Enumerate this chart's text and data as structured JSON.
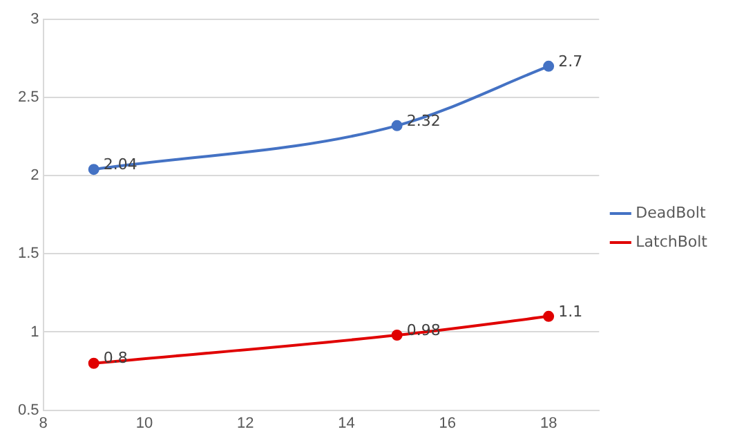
{
  "chart_data": {
    "type": "line",
    "x": [
      9,
      15,
      18
    ],
    "series": [
      {
        "name": "DeadBolt",
        "color": "#4472c4",
        "values": [
          2.04,
          2.32,
          2.7
        ]
      },
      {
        "name": "LatchBolt",
        "color": "#e00000",
        "values": [
          0.8,
          0.98,
          1.1
        ]
      }
    ],
    "xlim": [
      8,
      19
    ],
    "xticks": [
      8,
      10,
      12,
      14,
      16,
      18
    ],
    "ylim": [
      0.5,
      3
    ],
    "yticks": [
      0.5,
      1,
      1.5,
      2,
      2.5,
      3
    ],
    "grid": "y",
    "legend": "right",
    "marker": "circle",
    "line_style": "solid",
    "data_labels": true
  }
}
